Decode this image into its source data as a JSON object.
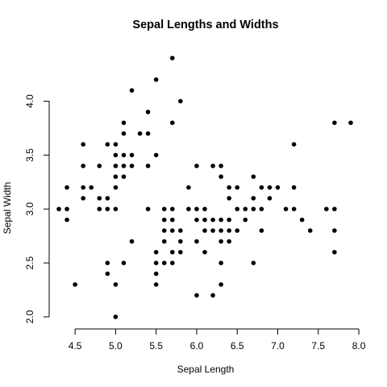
{
  "chart_data": {
    "type": "scatter",
    "title": "Sepal Lengths and Widths",
    "xlabel": "Sepal Length",
    "ylabel": "Sepal Width",
    "xlim": [
      4.3,
      7.9
    ],
    "ylim": [
      2.0,
      4.4
    ],
    "xticks": [
      4.5,
      5.0,
      5.5,
      6.0,
      6.5,
      7.0,
      7.5,
      8.0
    ],
    "xtick_labels": [
      "4.5",
      "5.0",
      "5.5",
      "6.0",
      "6.5",
      "7.0",
      "7.5",
      "8.0"
    ],
    "yticks": [
      2.0,
      2.5,
      3.0,
      3.5,
      4.0
    ],
    "ytick_labels": [
      "2.0",
      "2.5",
      "3.0",
      "3.5",
      "4.0"
    ],
    "grid": false,
    "legend": "none",
    "marker_color": "#000000",
    "series": [
      {
        "points": [
          [
            4.3,
            3.0
          ],
          [
            4.4,
            2.9
          ],
          [
            4.4,
            3.0
          ],
          [
            4.4,
            3.2
          ],
          [
            4.5,
            2.3
          ],
          [
            4.6,
            3.1
          ],
          [
            4.6,
            3.2
          ],
          [
            4.6,
            3.4
          ],
          [
            4.6,
            3.6
          ],
          [
            4.7,
            3.2
          ],
          [
            4.8,
            3.0
          ],
          [
            4.8,
            3.1
          ],
          [
            4.8,
            3.4
          ],
          [
            4.9,
            2.4
          ],
          [
            4.9,
            2.5
          ],
          [
            4.9,
            3.0
          ],
          [
            4.9,
            3.1
          ],
          [
            4.9,
            3.6
          ],
          [
            5.0,
            2.0
          ],
          [
            5.0,
            2.3
          ],
          [
            5.0,
            3.0
          ],
          [
            5.0,
            3.2
          ],
          [
            5.0,
            3.3
          ],
          [
            5.0,
            3.4
          ],
          [
            5.0,
            3.5
          ],
          [
            5.0,
            3.6
          ],
          [
            5.1,
            2.5
          ],
          [
            5.1,
            3.3
          ],
          [
            5.1,
            3.4
          ],
          [
            5.1,
            3.5
          ],
          [
            5.1,
            3.7
          ],
          [
            5.1,
            3.8
          ],
          [
            5.2,
            2.7
          ],
          [
            5.2,
            3.4
          ],
          [
            5.2,
            3.5
          ],
          [
            5.2,
            4.1
          ],
          [
            5.3,
            3.7
          ],
          [
            5.4,
            3.0
          ],
          [
            5.4,
            3.4
          ],
          [
            5.4,
            3.7
          ],
          [
            5.4,
            3.9
          ],
          [
            5.5,
            2.3
          ],
          [
            5.5,
            2.4
          ],
          [
            5.5,
            2.5
          ],
          [
            5.5,
            2.6
          ],
          [
            5.5,
            3.5
          ],
          [
            5.5,
            4.2
          ],
          [
            5.6,
            2.5
          ],
          [
            5.6,
            2.7
          ],
          [
            5.6,
            2.8
          ],
          [
            5.6,
            2.9
          ],
          [
            5.6,
            3.0
          ],
          [
            5.7,
            2.5
          ],
          [
            5.7,
            2.6
          ],
          [
            5.7,
            2.8
          ],
          [
            5.7,
            2.9
          ],
          [
            5.7,
            3.0
          ],
          [
            5.7,
            3.8
          ],
          [
            5.7,
            4.4
          ],
          [
            5.8,
            2.6
          ],
          [
            5.8,
            2.7
          ],
          [
            5.8,
            2.8
          ],
          [
            5.8,
            4.0
          ],
          [
            5.9,
            3.0
          ],
          [
            5.9,
            3.2
          ],
          [
            6.0,
            2.2
          ],
          [
            6.0,
            2.7
          ],
          [
            6.0,
            2.9
          ],
          [
            6.0,
            3.0
          ],
          [
            6.0,
            3.4
          ],
          [
            6.1,
            2.6
          ],
          [
            6.1,
            2.8
          ],
          [
            6.1,
            2.9
          ],
          [
            6.1,
            3.0
          ],
          [
            6.2,
            2.2
          ],
          [
            6.2,
            2.8
          ],
          [
            6.2,
            2.9
          ],
          [
            6.2,
            3.4
          ],
          [
            6.3,
            2.3
          ],
          [
            6.3,
            2.5
          ],
          [
            6.3,
            2.7
          ],
          [
            6.3,
            2.8
          ],
          [
            6.3,
            2.9
          ],
          [
            6.3,
            3.3
          ],
          [
            6.3,
            3.4
          ],
          [
            6.4,
            2.7
          ],
          [
            6.4,
            2.8
          ],
          [
            6.4,
            2.9
          ],
          [
            6.4,
            3.1
          ],
          [
            6.4,
            3.2
          ],
          [
            6.5,
            2.8
          ],
          [
            6.5,
            3.0
          ],
          [
            6.5,
            3.2
          ],
          [
            6.6,
            2.9
          ],
          [
            6.6,
            3.0
          ],
          [
            6.7,
            2.5
          ],
          [
            6.7,
            3.0
          ],
          [
            6.7,
            3.1
          ],
          [
            6.7,
            3.3
          ],
          [
            6.8,
            2.8
          ],
          [
            6.8,
            3.0
          ],
          [
            6.8,
            3.2
          ],
          [
            6.9,
            3.1
          ],
          [
            6.9,
            3.2
          ],
          [
            7.0,
            3.2
          ],
          [
            7.1,
            3.0
          ],
          [
            7.2,
            3.0
          ],
          [
            7.2,
            3.2
          ],
          [
            7.2,
            3.6
          ],
          [
            7.3,
            2.9
          ],
          [
            7.4,
            2.8
          ],
          [
            7.6,
            3.0
          ],
          [
            7.7,
            2.6
          ],
          [
            7.7,
            2.8
          ],
          [
            7.7,
            3.0
          ],
          [
            7.7,
            3.8
          ],
          [
            7.9,
            3.8
          ]
        ]
      }
    ]
  }
}
